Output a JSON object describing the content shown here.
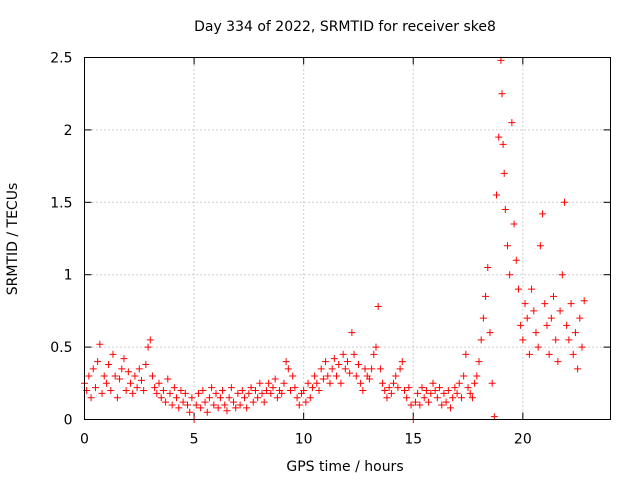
{
  "chart_data": {
    "type": "scatter",
    "title": "Day 334 of 2022, SRMTID for receiver ske8",
    "xlabel": "GPS time / hours",
    "ylabel": "SRMTID / TECUs",
    "xlim": [
      0,
      24
    ],
    "ylim": [
      0,
      2.5
    ],
    "x_ticks": [
      0,
      5,
      10,
      15,
      20
    ],
    "x_tick_labels": [
      "0",
      "5",
      "10",
      "15",
      "20"
    ],
    "y_ticks": [
      0,
      0.5,
      1,
      1.5,
      2,
      2.5
    ],
    "y_tick_labels": [
      "0",
      "0.5",
      "1",
      "1.5",
      "2",
      "2.5"
    ],
    "grid": true,
    "marker": "+",
    "color": "#ff0000",
    "series": [
      {
        "name": "SRMTID",
        "points": [
          [
            0.0,
            0.25
          ],
          [
            0.1,
            0.2
          ],
          [
            0.2,
            0.3
          ],
          [
            0.3,
            0.15
          ],
          [
            0.4,
            0.35
          ],
          [
            0.5,
            0.22
          ],
          [
            0.6,
            0.4
          ],
          [
            0.7,
            0.52
          ],
          [
            0.8,
            0.18
          ],
          [
            0.9,
            0.3
          ],
          [
            1.0,
            0.25
          ],
          [
            1.1,
            0.38
          ],
          [
            1.2,
            0.2
          ],
          [
            1.3,
            0.45
          ],
          [
            1.4,
            0.3
          ],
          [
            1.5,
            0.15
          ],
          [
            1.6,
            0.28
          ],
          [
            1.7,
            0.35
          ],
          [
            1.8,
            0.42
          ],
          [
            1.9,
            0.2
          ],
          [
            2.0,
            0.33
          ],
          [
            2.1,
            0.25
          ],
          [
            2.2,
            0.18
          ],
          [
            2.3,
            0.3
          ],
          [
            2.4,
            0.22
          ],
          [
            2.5,
            0.35
          ],
          [
            2.6,
            0.27
          ],
          [
            2.7,
            0.2
          ],
          [
            2.8,
            0.38
          ],
          [
            2.9,
            0.5
          ],
          [
            3.0,
            0.55
          ],
          [
            3.1,
            0.3
          ],
          [
            3.2,
            0.22
          ],
          [
            3.3,
            0.18
          ],
          [
            3.4,
            0.25
          ],
          [
            3.5,
            0.15
          ],
          [
            3.6,
            0.2
          ],
          [
            3.7,
            0.12
          ],
          [
            3.8,
            0.28
          ],
          [
            3.9,
            0.18
          ],
          [
            4.0,
            0.1
          ],
          [
            4.1,
            0.22
          ],
          [
            4.2,
            0.15
          ],
          [
            4.3,
            0.08
          ],
          [
            4.4,
            0.2
          ],
          [
            4.5,
            0.12
          ],
          [
            4.6,
            0.18
          ],
          [
            4.7,
            0.1
          ],
          [
            4.8,
            0.05
          ],
          [
            4.9,
            0.15
          ],
          [
            5.0,
            0.0
          ],
          [
            5.1,
            0.1
          ],
          [
            5.2,
            0.18
          ],
          [
            5.3,
            0.08
          ],
          [
            5.4,
            0.2
          ],
          [
            5.5,
            0.12
          ],
          [
            5.6,
            0.05
          ],
          [
            5.7,
            0.15
          ],
          [
            5.8,
            0.22
          ],
          [
            5.9,
            0.1
          ],
          [
            6.0,
            0.18
          ],
          [
            6.1,
            0.08
          ],
          [
            6.2,
            0.15
          ],
          [
            6.3,
            0.2
          ],
          [
            6.4,
            0.1
          ],
          [
            6.5,
            0.06
          ],
          [
            6.6,
            0.15
          ],
          [
            6.7,
            0.22
          ],
          [
            6.8,
            0.12
          ],
          [
            6.9,
            0.08
          ],
          [
            7.0,
            0.18
          ],
          [
            7.1,
            0.1
          ],
          [
            7.2,
            0.2
          ],
          [
            7.3,
            0.15
          ],
          [
            7.4,
            0.08
          ],
          [
            7.5,
            0.18
          ],
          [
            7.6,
            0.22
          ],
          [
            7.7,
            0.12
          ],
          [
            7.8,
            0.2
          ],
          [
            7.9,
            0.15
          ],
          [
            8.0,
            0.25
          ],
          [
            8.1,
            0.18
          ],
          [
            8.2,
            0.12
          ],
          [
            8.3,
            0.2
          ],
          [
            8.4,
            0.25
          ],
          [
            8.5,
            0.18
          ],
          [
            8.6,
            0.22
          ],
          [
            8.7,
            0.28
          ],
          [
            8.8,
            0.15
          ],
          [
            8.9,
            0.2
          ],
          [
            9.0,
            0.18
          ],
          [
            9.1,
            0.25
          ],
          [
            9.2,
            0.4
          ],
          [
            9.3,
            0.35
          ],
          [
            9.4,
            0.2
          ],
          [
            9.5,
            0.3
          ],
          [
            9.6,
            0.22
          ],
          [
            9.7,
            0.15
          ],
          [
            9.8,
            0.1
          ],
          [
            9.9,
            0.18
          ],
          [
            10.0,
            0.2
          ],
          [
            10.1,
            0.12
          ],
          [
            10.2,
            0.25
          ],
          [
            10.3,
            0.15
          ],
          [
            10.4,
            0.22
          ],
          [
            10.5,
            0.3
          ],
          [
            10.6,
            0.25
          ],
          [
            10.7,
            0.2
          ],
          [
            10.8,
            0.35
          ],
          [
            10.9,
            0.28
          ],
          [
            11.0,
            0.4
          ],
          [
            11.1,
            0.3
          ],
          [
            11.2,
            0.25
          ],
          [
            11.3,
            0.35
          ],
          [
            11.4,
            0.42
          ],
          [
            11.5,
            0.3
          ],
          [
            11.6,
            0.38
          ],
          [
            11.7,
            0.25
          ],
          [
            11.8,
            0.45
          ],
          [
            11.9,
            0.35
          ],
          [
            12.0,
            0.4
          ],
          [
            12.1,
            0.32
          ],
          [
            12.2,
            0.6
          ],
          [
            12.3,
            0.45
          ],
          [
            12.4,
            0.3
          ],
          [
            12.5,
            0.38
          ],
          [
            12.6,
            0.25
          ],
          [
            12.7,
            0.2
          ],
          [
            12.8,
            0.35
          ],
          [
            12.9,
            0.3
          ],
          [
            13.0,
            0.28
          ],
          [
            13.1,
            0.35
          ],
          [
            13.2,
            0.45
          ],
          [
            13.3,
            0.5
          ],
          [
            13.4,
            0.78
          ],
          [
            13.5,
            0.35
          ],
          [
            13.6,
            0.25
          ],
          [
            13.7,
            0.2
          ],
          [
            13.8,
            0.15
          ],
          [
            13.9,
            0.22
          ],
          [
            14.0,
            0.18
          ],
          [
            14.1,
            0.25
          ],
          [
            14.2,
            0.3
          ],
          [
            14.3,
            0.22
          ],
          [
            14.4,
            0.35
          ],
          [
            14.5,
            0.4
          ],
          [
            14.6,
            0.2
          ],
          [
            14.7,
            0.15
          ],
          [
            14.8,
            0.22
          ],
          [
            14.9,
            0.1
          ],
          [
            15.0,
            0.0
          ],
          [
            15.1,
            0.12
          ],
          [
            15.2,
            0.18
          ],
          [
            15.3,
            0.1
          ],
          [
            15.4,
            0.22
          ],
          [
            15.5,
            0.15
          ],
          [
            15.6,
            0.2
          ],
          [
            15.7,
            0.12
          ],
          [
            15.8,
            0.18
          ],
          [
            15.9,
            0.25
          ],
          [
            16.0,
            0.2
          ],
          [
            16.1,
            0.15
          ],
          [
            16.2,
            0.22
          ],
          [
            16.3,
            0.1
          ],
          [
            16.4,
            0.18
          ],
          [
            16.5,
            0.12
          ],
          [
            16.6,
            0.2
          ],
          [
            16.7,
            0.08
          ],
          [
            16.8,
            0.15
          ],
          [
            16.9,
            0.22
          ],
          [
            17.0,
            0.18
          ],
          [
            17.1,
            0.25
          ],
          [
            17.2,
            0.15
          ],
          [
            17.3,
            0.3
          ],
          [
            17.4,
            0.45
          ],
          [
            17.5,
            0.22
          ],
          [
            17.6,
            0.18
          ],
          [
            17.7,
            0.15
          ],
          [
            17.8,
            0.25
          ],
          [
            17.9,
            0.3
          ],
          [
            18.0,
            0.4
          ],
          [
            18.1,
            0.55
          ],
          [
            18.2,
            0.7
          ],
          [
            18.3,
            0.85
          ],
          [
            18.4,
            1.05
          ],
          [
            18.5,
            0.6
          ],
          [
            18.6,
            0.25
          ],
          [
            18.7,
            0.02
          ],
          [
            18.8,
            1.55
          ],
          [
            18.9,
            1.95
          ],
          [
            19.0,
            2.48
          ],
          [
            19.05,
            2.25
          ],
          [
            19.1,
            1.9
          ],
          [
            19.15,
            1.7
          ],
          [
            19.2,
            1.45
          ],
          [
            19.3,
            1.2
          ],
          [
            19.4,
            1.0
          ],
          [
            19.5,
            2.05
          ],
          [
            19.6,
            1.35
          ],
          [
            19.7,
            1.1
          ],
          [
            19.8,
            0.9
          ],
          [
            19.9,
            0.65
          ],
          [
            20.0,
            0.55
          ],
          [
            20.1,
            0.8
          ],
          [
            20.2,
            0.7
          ],
          [
            20.3,
            0.45
          ],
          [
            20.4,
            0.9
          ],
          [
            20.5,
            0.75
          ],
          [
            20.6,
            0.6
          ],
          [
            20.7,
            0.5
          ],
          [
            20.8,
            1.2
          ],
          [
            20.9,
            1.42
          ],
          [
            21.0,
            0.8
          ],
          [
            21.1,
            0.65
          ],
          [
            21.2,
            0.45
          ],
          [
            21.3,
            0.7
          ],
          [
            21.4,
            0.85
          ],
          [
            21.5,
            0.55
          ],
          [
            21.6,
            0.4
          ],
          [
            21.7,
            0.75
          ],
          [
            21.8,
            1.0
          ],
          [
            21.9,
            1.5
          ],
          [
            22.0,
            0.65
          ],
          [
            22.1,
            0.55
          ],
          [
            22.2,
            0.8
          ],
          [
            22.3,
            0.45
          ],
          [
            22.4,
            0.6
          ],
          [
            22.5,
            0.35
          ],
          [
            22.6,
            0.7
          ],
          [
            22.7,
            0.5
          ],
          [
            22.8,
            0.82
          ]
        ]
      }
    ]
  }
}
